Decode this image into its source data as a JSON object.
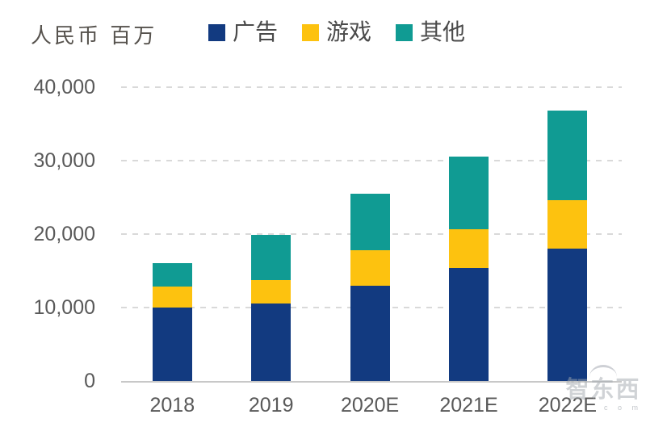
{
  "unit_label": "人民币 百万",
  "colors": {
    "ad": "#123a80",
    "game": "#fdc20f",
    "other": "#109b93",
    "gridline": "#d9d9d9",
    "axis_line": "#c8c8c8",
    "tick_text": "#595959",
    "unit_text": "#56524d",
    "legend_text": "#4a4a4a"
  },
  "watermark": {
    "text": "智东西",
    "suffix": "c o m"
  },
  "chart_data": {
    "type": "bar",
    "stacked": true,
    "title": "",
    "ylabel": "人民币 百万",
    "xlabel": "",
    "categories": [
      "2018",
      "2019",
      "2020E",
      "2021E",
      "2022E"
    ],
    "series": [
      {
        "name": "广告",
        "key": "ad",
        "values": [
          10000,
          10500,
          13000,
          15400,
          18000
        ]
      },
      {
        "name": "游戏",
        "key": "game",
        "values": [
          2800,
          3200,
          4800,
          5300,
          6600
        ]
      },
      {
        "name": "其他",
        "key": "other",
        "values": [
          3200,
          6200,
          7700,
          9900,
          12200
        ]
      }
    ],
    "totals": [
      16000,
      19900,
      25500,
      30600,
      36800
    ],
    "ylim": [
      0,
      40000
    ],
    "yticks": [
      0,
      10000,
      20000,
      30000,
      40000
    ],
    "ytick_labels": [
      "0",
      "10,000",
      "20,000",
      "30,000",
      "40,000"
    ],
    "grid": "horizontal-dashed",
    "legend_position": "top"
  }
}
